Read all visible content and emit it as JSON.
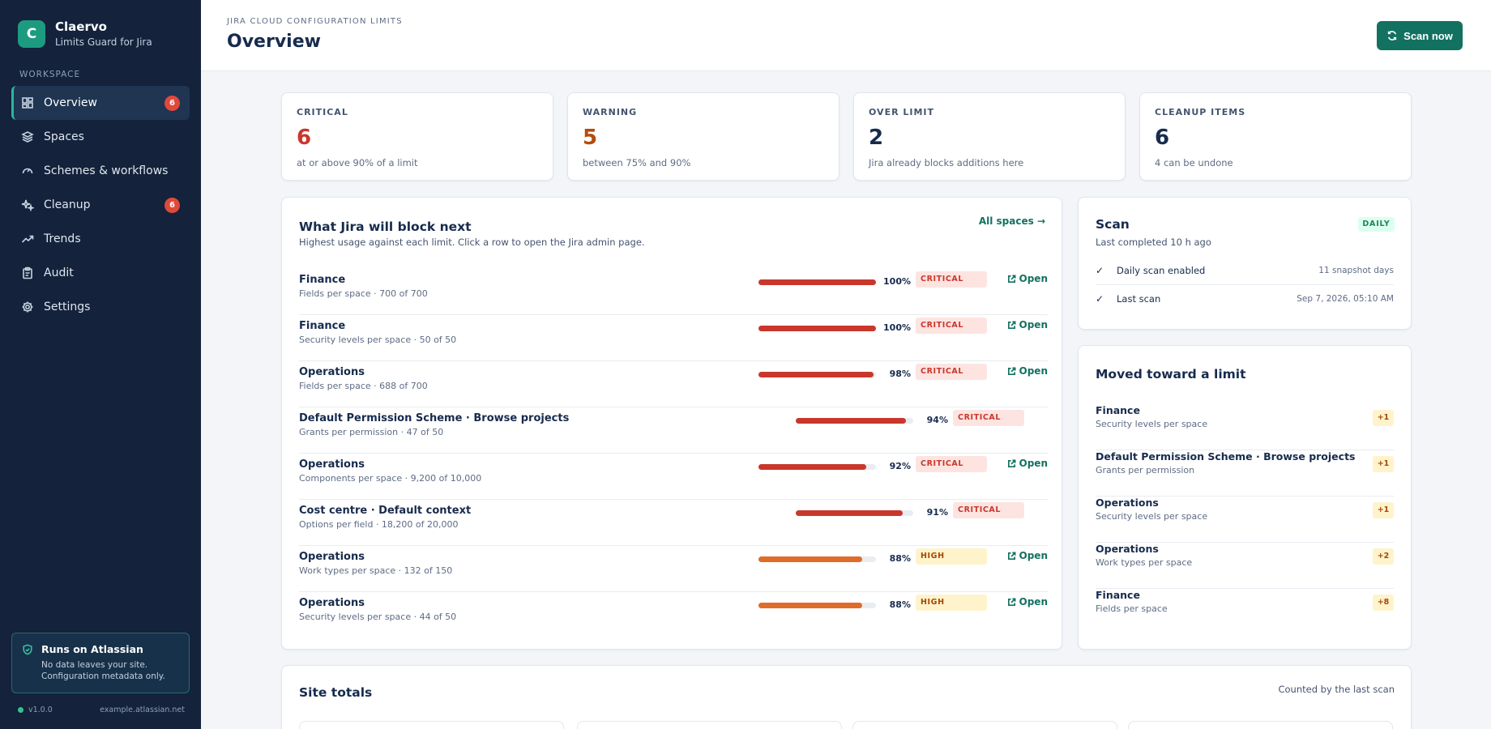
{
  "brand": {
    "logo_letter": "C",
    "name": "Claervo",
    "subtitle": "Limits Guard for Jira"
  },
  "sidebar": {
    "section_label": "WORKSPACE",
    "items": [
      {
        "label": "Overview",
        "icon": "dashboard-icon",
        "badge": "6",
        "active": true
      },
      {
        "label": "Spaces",
        "icon": "layers-icon",
        "badge": null
      },
      {
        "label": "Schemes & workflows",
        "icon": "gauge-icon",
        "badge": null
      },
      {
        "label": "Cleanup",
        "icon": "sparkle-icon",
        "badge": "6"
      },
      {
        "label": "Trends",
        "icon": "trend-icon",
        "badge": null
      },
      {
        "label": "Audit",
        "icon": "clipboard-icon",
        "badge": null
      },
      {
        "label": "Settings",
        "icon": "gear-icon",
        "badge": null
      }
    ],
    "runs_on": {
      "title": "Runs on Atlassian",
      "description": "No data leaves your site. Configuration metadata only."
    },
    "version": "v1.0.0",
    "site": "example.atlassian.net"
  },
  "header": {
    "eyebrow": "JIRA CLOUD CONFIGURATION LIMITS",
    "title": "Overview",
    "scan_button": "Scan now"
  },
  "stats": [
    {
      "label": "CRITICAL",
      "value": "6",
      "note": "at or above 90% of a limit",
      "color": "#c9372c"
    },
    {
      "label": "WARNING",
      "value": "5",
      "note": "between 75% and 90%",
      "color": "#b44c0e"
    },
    {
      "label": "OVER LIMIT",
      "value": "2",
      "note": "Jira already blocks additions here",
      "color": "#172b4d"
    },
    {
      "label": "CLEANUP ITEMS",
      "value": "6",
      "note": "4 can be undone",
      "color": "#172b4d"
    }
  ],
  "block_next": {
    "title": "What Jira will block next",
    "subtitle": "Highest usage against each limit. Click a row to open the Jira admin page.",
    "link": "All spaces →",
    "open_label": "Open",
    "rows": [
      {
        "name": "Finance",
        "detail": "Fields per space · 700 of 700",
        "percent": 100,
        "pct_label": "100%",
        "status": "CRITICAL",
        "level": "critical",
        "has_open": true
      },
      {
        "name": "Finance",
        "detail": "Security levels per space · 50 of 50",
        "percent": 100,
        "pct_label": "100%",
        "status": "CRITICAL",
        "level": "critical",
        "has_open": true
      },
      {
        "name": "Operations",
        "detail": "Fields per space · 688 of 700",
        "percent": 98,
        "pct_label": "98%",
        "status": "CRITICAL",
        "level": "critical",
        "has_open": true
      },
      {
        "name": "Default Permission Scheme · Browse projects",
        "detail": "Grants per permission · 47 of 50",
        "percent": 94,
        "pct_label": "94%",
        "status": "CRITICAL",
        "level": "critical",
        "has_open": false
      },
      {
        "name": "Operations",
        "detail": "Components per space · 9,200 of 10,000",
        "percent": 92,
        "pct_label": "92%",
        "status": "CRITICAL",
        "level": "critical",
        "has_open": true
      },
      {
        "name": "Cost centre · Default context",
        "detail": "Options per field · 18,200 of 20,000",
        "percent": 91,
        "pct_label": "91%",
        "status": "CRITICAL",
        "level": "critical",
        "has_open": false
      },
      {
        "name": "Operations",
        "detail": "Work types per space · 132 of 150",
        "percent": 88,
        "pct_label": "88%",
        "status": "HIGH",
        "level": "high",
        "has_open": true
      },
      {
        "name": "Operations",
        "detail": "Security levels per space · 44 of 50",
        "percent": 88,
        "pct_label": "88%",
        "status": "HIGH",
        "level": "high",
        "has_open": true
      }
    ],
    "colors": {
      "critical": "#c9372c",
      "high": "#e06c2a"
    }
  },
  "scan": {
    "title": "Scan",
    "badge": "DAILY",
    "subtitle": "Last completed 10 h ago",
    "rows": [
      {
        "check": "✓",
        "label": "Daily scan enabled",
        "value": "11 snapshot days"
      },
      {
        "check": "✓",
        "label": "Last scan",
        "value": "Sep 7, 2026, 05:10 AM"
      }
    ]
  },
  "moved": {
    "title": "Moved toward a limit",
    "rows": [
      {
        "name": "Finance",
        "detail": "Security levels per space",
        "delta": "+1"
      },
      {
        "name": "Default Permission Scheme · Browse projects",
        "detail": "Grants per permission",
        "delta": "+1"
      },
      {
        "name": "Operations",
        "detail": "Security levels per space",
        "delta": "+1"
      },
      {
        "name": "Operations",
        "detail": "Work types per space",
        "delta": "+2"
      },
      {
        "name": "Finance",
        "detail": "Fields per space",
        "delta": "+8"
      }
    ]
  },
  "site_totals": {
    "title": "Site totals",
    "note": "Counted by the last scan"
  }
}
